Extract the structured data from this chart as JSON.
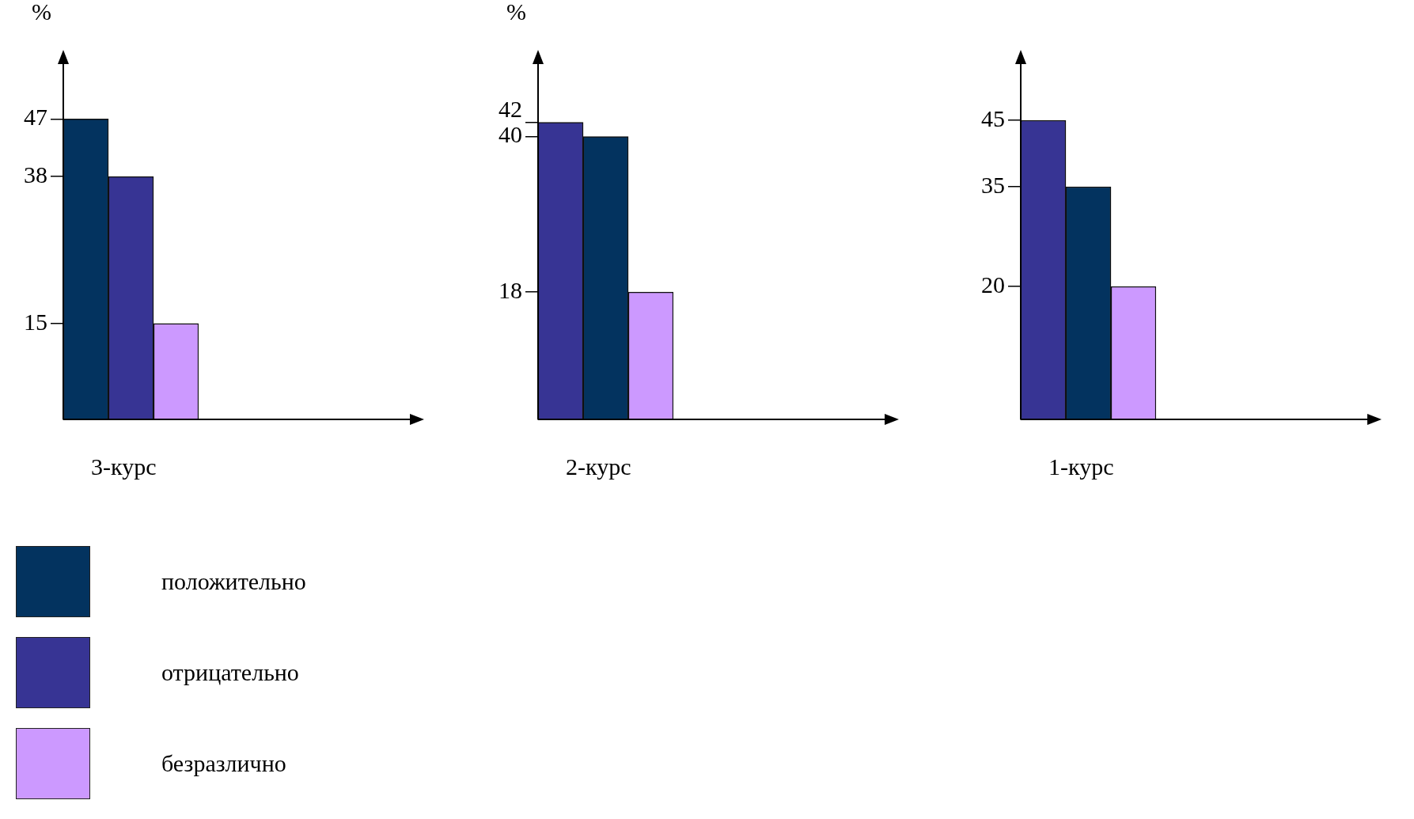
{
  "chart_data": [
    {
      "type": "bar",
      "xlabel": "3-курс",
      "ylabel": "%",
      "categories": [
        null
      ],
      "series": [
        {
          "name": "положительно",
          "color": "#03335f",
          "values": [
            47
          ]
        },
        {
          "name": "отрицательно",
          "color": "#373494",
          "values": [
            38
          ]
        },
        {
          "name": "безразлично",
          "color": "#cc99ff",
          "values": [
            15
          ]
        }
      ],
      "ylim": [
        0,
        52
      ],
      "yticks": [
        15,
        38,
        47
      ],
      "tick_labels": "y",
      "legend": "bottom left"
    },
    {
      "type": "bar",
      "xlabel": "2-курс",
      "ylabel": "%",
      "categories": [
        null
      ],
      "series": [
        {
          "color": "#373494",
          "values": [
            42
          ]
        },
        {
          "color": "#03335f",
          "values": [
            40
          ]
        },
        {
          "color": "#cc99ff",
          "values": [
            18
          ]
        }
      ],
      "ylim": [
        0,
        47
      ],
      "yticks": [
        18,
        40,
        42
      ],
      "tick_labels": "y"
    },
    {
      "type": "bar",
      "xlabel": "1-курс",
      "categories": [
        null
      ],
      "series": [
        {
          "color": "#373494",
          "values": [
            45
          ]
        },
        {
          "color": "#03335f",
          "values": [
            35
          ]
        },
        {
          "color": "#cc99ff",
          "values": [
            20
          ]
        }
      ],
      "ylim": [
        0,
        50
      ],
      "yticks": [
        20,
        35,
        45
      ],
      "tick_labels": "y"
    }
  ]
}
